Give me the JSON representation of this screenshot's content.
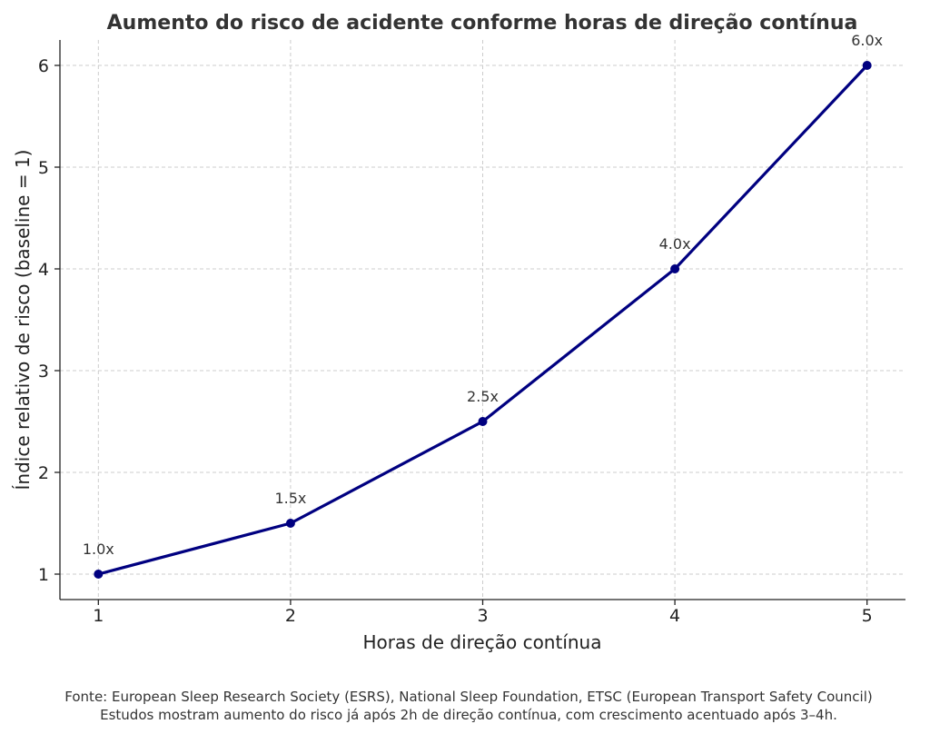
{
  "chart_data": {
    "type": "line",
    "title": "Aumento do risco de acidente conforme horas de direção contínua",
    "xlabel": "Horas de direção contínua",
    "ylabel": "Índice relativo de risco (baseline = 1)",
    "x": [
      1,
      2,
      3,
      4,
      5
    ],
    "series": [
      {
        "values": [
          1.0,
          1.5,
          2.5,
          4.0,
          6.0
        ],
        "data_labels": [
          "1.0x",
          "1.5x",
          "2.5x",
          "4.0x",
          "6.0x"
        ],
        "color": "#000080",
        "marker": "circle"
      }
    ],
    "x_ticks": [
      "1",
      "2",
      "3",
      "4",
      "5"
    ],
    "y_ticks": [
      "1",
      "2",
      "3",
      "4",
      "5",
      "6"
    ],
    "xlim": [
      0.8,
      5.2
    ],
    "ylim": [
      0.75,
      6.25
    ],
    "grid": true,
    "legend": "none"
  },
  "footnote": {
    "line1": "Fonte: European Sleep Research Society (ESRS), National Sleep Foundation, ETSC (European Transport Safety Council)",
    "line2": "Estudos mostram aumento do risco já após 2h de direção contínua, com crescimento acentuado após 3–4h."
  }
}
